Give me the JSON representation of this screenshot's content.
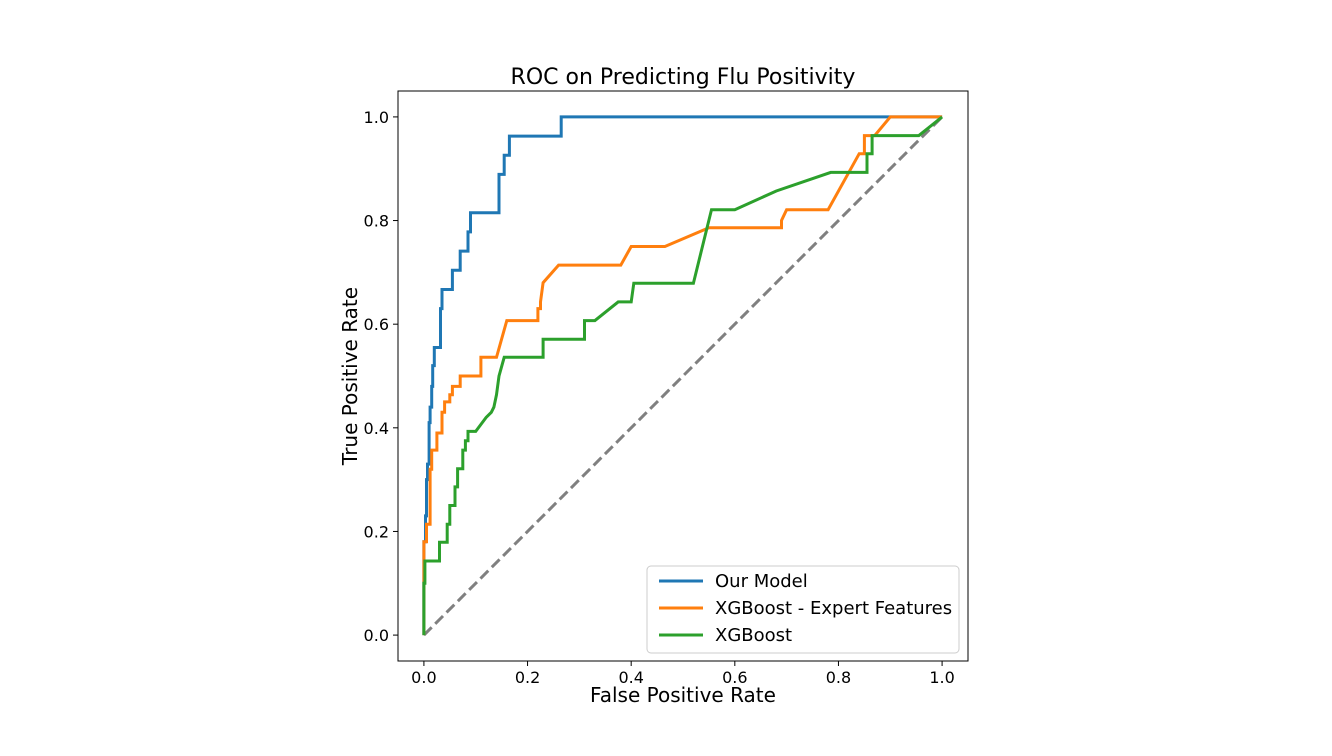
{
  "chart_data": {
    "type": "line",
    "title": "ROC on Predicting Flu Positivity",
    "xlabel": "False Positive Rate",
    "ylabel": "True Positive Rate",
    "xlim": [
      -0.05,
      1.05
    ],
    "ylim": [
      -0.05,
      1.05
    ],
    "xticks": [
      0.0,
      0.2,
      0.4,
      0.6,
      0.8,
      1.0
    ],
    "yticks": [
      0.0,
      0.2,
      0.4,
      0.6,
      0.8,
      1.0
    ],
    "xtick_labels": [
      "0.0",
      "0.2",
      "0.4",
      "0.6",
      "0.8",
      "1.0"
    ],
    "ytick_labels": [
      "0.0",
      "0.2",
      "0.4",
      "0.6",
      "0.8",
      "1.0"
    ],
    "grid": false,
    "legend_position": "lower-right",
    "diagonal": {
      "color": "#808080",
      "style": "dashed",
      "x": [
        0,
        1
      ],
      "y": [
        0,
        1
      ]
    },
    "series": [
      {
        "name": "Our Model",
        "color": "#1f77b4",
        "x": [
          0.0,
          0.0,
          0.003,
          0.003,
          0.005,
          0.005,
          0.007,
          0.007,
          0.01,
          0.01,
          0.012,
          0.012,
          0.015,
          0.015,
          0.017,
          0.017,
          0.02,
          0.02,
          0.032,
          0.032,
          0.035,
          0.035,
          0.038,
          0.038,
          0.055,
          0.055,
          0.07,
          0.07,
          0.085,
          0.085,
          0.09,
          0.09,
          0.145,
          0.145,
          0.155,
          0.155,
          0.165,
          0.165,
          0.265,
          0.265,
          1.0
        ],
        "y": [
          0.0,
          0.18,
          0.18,
          0.23,
          0.23,
          0.3,
          0.3,
          0.33,
          0.33,
          0.41,
          0.41,
          0.44,
          0.44,
          0.48,
          0.48,
          0.52,
          0.52,
          0.555,
          0.555,
          0.63,
          0.63,
          0.667,
          0.667,
          0.667,
          0.667,
          0.704,
          0.704,
          0.741,
          0.741,
          0.778,
          0.778,
          0.815,
          0.815,
          0.889,
          0.889,
          0.926,
          0.926,
          0.963,
          0.963,
          1.0,
          1.0
        ]
      },
      {
        "name": "XGBoost - Expert Features",
        "color": "#ff7f0e",
        "x": [
          0.0,
          0.0,
          0.005,
          0.005,
          0.012,
          0.012,
          0.015,
          0.015,
          0.025,
          0.025,
          0.035,
          0.035,
          0.04,
          0.04,
          0.05,
          0.05,
          0.055,
          0.055,
          0.07,
          0.07,
          0.11,
          0.11,
          0.14,
          0.14,
          0.16,
          0.16,
          0.22,
          0.22,
          0.225,
          0.225,
          0.23,
          0.26,
          0.38,
          0.38,
          0.4,
          0.465,
          0.55,
          0.69,
          0.69,
          0.7,
          0.78,
          0.84,
          0.84,
          0.85,
          0.85,
          0.87,
          0.9,
          1.0
        ],
        "y": [
          0.0,
          0.18,
          0.18,
          0.214,
          0.214,
          0.32,
          0.32,
          0.357,
          0.357,
          0.39,
          0.39,
          0.43,
          0.43,
          0.45,
          0.45,
          0.464,
          0.464,
          0.48,
          0.48,
          0.5,
          0.5,
          0.536,
          0.536,
          0.536,
          0.607,
          0.607,
          0.607,
          0.63,
          0.63,
          0.643,
          0.68,
          0.714,
          0.714,
          0.714,
          0.75,
          0.75,
          0.786,
          0.786,
          0.8,
          0.821,
          0.821,
          0.929,
          0.929,
          0.929,
          0.964,
          0.964,
          1.0,
          1.0
        ]
      },
      {
        "name": "XGBoost",
        "color": "#2ca02c",
        "x": [
          0.0,
          0.0,
          0.002,
          0.002,
          0.03,
          0.03,
          0.045,
          0.045,
          0.05,
          0.05,
          0.06,
          0.06,
          0.065,
          0.065,
          0.075,
          0.075,
          0.08,
          0.08,
          0.085,
          0.085,
          0.1,
          0.12,
          0.13,
          0.13,
          0.135,
          0.135,
          0.14,
          0.14,
          0.145,
          0.145,
          0.155,
          0.155,
          0.23,
          0.23,
          0.31,
          0.31,
          0.33,
          0.375,
          0.4,
          0.4,
          0.405,
          0.405,
          0.52,
          0.555,
          0.6,
          0.68,
          0.785,
          0.84,
          0.855,
          0.855,
          0.865,
          0.865,
          0.945,
          0.945,
          0.955,
          1.0
        ],
        "y": [
          0.0,
          0.1,
          0.1,
          0.143,
          0.143,
          0.179,
          0.179,
          0.214,
          0.214,
          0.25,
          0.25,
          0.286,
          0.286,
          0.321,
          0.321,
          0.357,
          0.357,
          0.375,
          0.375,
          0.393,
          0.393,
          0.42,
          0.43,
          0.43,
          0.44,
          0.44,
          0.464,
          0.464,
          0.5,
          0.5,
          0.536,
          0.536,
          0.536,
          0.571,
          0.571,
          0.607,
          0.607,
          0.643,
          0.643,
          0.643,
          0.679,
          0.679,
          0.679,
          0.821,
          0.821,
          0.857,
          0.893,
          0.893,
          0.893,
          0.929,
          0.929,
          0.964,
          0.964,
          0.964,
          0.964,
          1.0
        ]
      }
    ]
  }
}
